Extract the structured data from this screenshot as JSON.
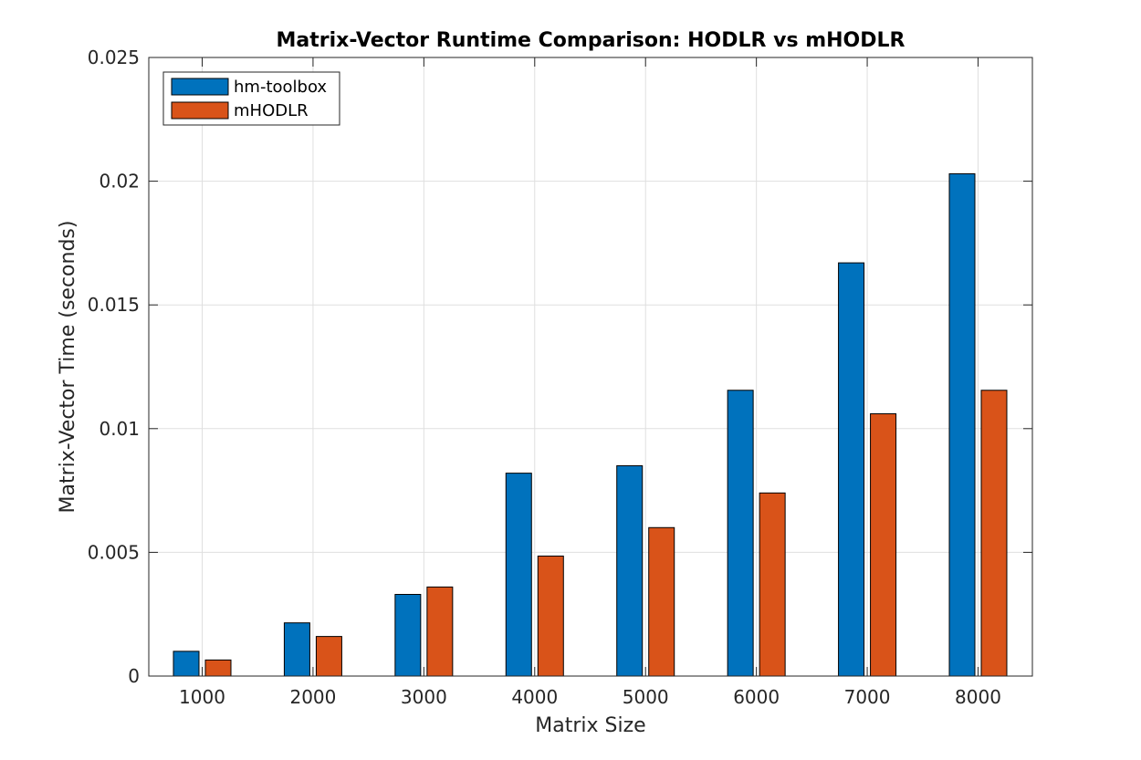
{
  "chart_data": {
    "type": "bar",
    "title": "Matrix-Vector Runtime Comparison: HODLR vs mHODLR",
    "xlabel": "Matrix Size",
    "ylabel": "Matrix-Vector Time (seconds)",
    "categories": [
      "1000",
      "2000",
      "3000",
      "4000",
      "5000",
      "6000",
      "7000",
      "8000"
    ],
    "ylim": [
      0,
      0.025
    ],
    "yticks": [
      0,
      0.005,
      0.01,
      0.015,
      0.02,
      0.025
    ],
    "ytick_labels": [
      "0",
      "0.005",
      "0.01",
      "0.015",
      "0.02",
      "0.025"
    ],
    "grid": true,
    "legend_position": "top-left",
    "series": [
      {
        "name": "hm-toolbox",
        "color": "#0072BD",
        "values": [
          0.001,
          0.00215,
          0.0033,
          0.0082,
          0.0085,
          0.01155,
          0.0167,
          0.0203
        ]
      },
      {
        "name": "mHODLR",
        "color": "#D95319",
        "values": [
          0.00065,
          0.0016,
          0.0036,
          0.00485,
          0.006,
          0.0074,
          0.0106,
          0.01155
        ]
      }
    ]
  }
}
